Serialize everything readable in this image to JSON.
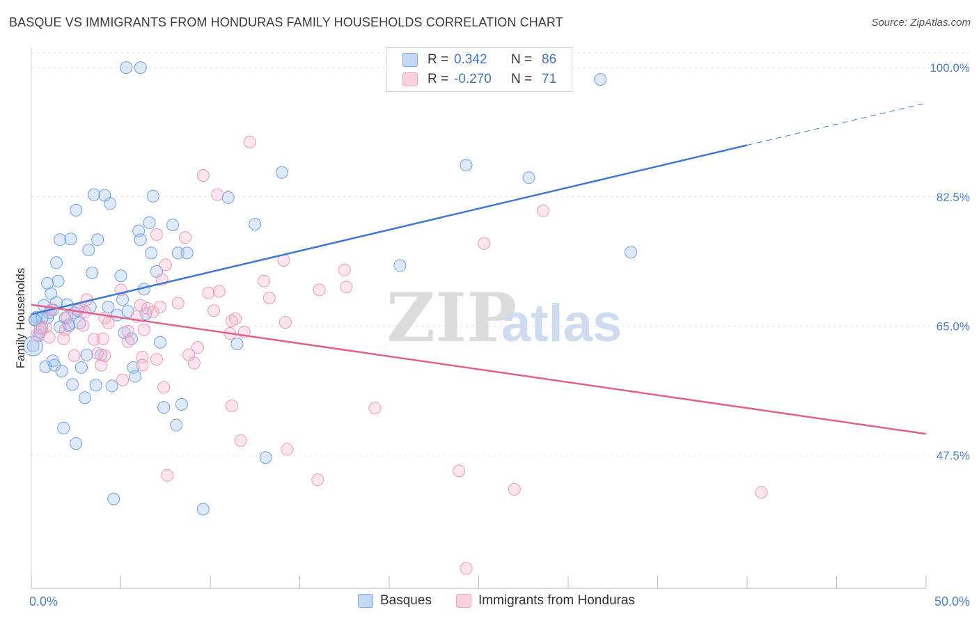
{
  "header": {
    "title": "BASQUE VS IMMIGRANTS FROM HONDURAS FAMILY HOUSEHOLDS CORRELATION CHART",
    "source": "Source: ZipAtlas.com"
  },
  "watermark": {
    "zip": "ZIP",
    "atlas": "atlas"
  },
  "legend": {
    "rows": [
      {
        "r_label": "R =",
        "r_value": "0.342",
        "n_label": "N =",
        "n_value": "86",
        "color": "#7aa8e8"
      },
      {
        "r_label": "R =",
        "r_value": "-0.270",
        "n_label": "N =",
        "n_value": "71",
        "color": "#f0a0bb"
      }
    ]
  },
  "chart_data": {
    "type": "scatter",
    "title": "BASQUE VS IMMIGRANTS FROM HONDURAS FAMILY HOUSEHOLDS CORRELATION CHART",
    "xlabel": "",
    "ylabel": "Family Households",
    "xlim": [
      0,
      50
    ],
    "ylim": [
      29.5,
      103.5
    ],
    "x_tick_labels": [
      "0.0%",
      "50.0%"
    ],
    "x_ticks": [
      0,
      5,
      10,
      15,
      20,
      25,
      30,
      35,
      40,
      45,
      50
    ],
    "y_ticks": [
      47.5,
      65.0,
      82.5,
      100.0
    ],
    "y_tick_labels": [
      "47.5%",
      "65.0%",
      "82.5%",
      "100.0%"
    ],
    "grid": true,
    "legend_position": "top-center",
    "series": [
      {
        "name": "Basques",
        "color": "#7aa8e8",
        "line_color": "#3d78d4",
        "trend": {
          "x0": 0,
          "y0": 66.6,
          "x1": 40,
          "y1": 89.5,
          "dash_to_x": 50,
          "dash_to_y": 95.2
        },
        "points": [
          [
            5.3,
            100.0
          ],
          [
            6.1,
            100.0
          ],
          [
            31.8,
            98.4
          ],
          [
            0.1,
            62.3
          ],
          [
            0.2,
            65.8
          ],
          [
            0.3,
            66.2
          ],
          [
            0.4,
            63.7
          ],
          [
            0.5,
            64.2
          ],
          [
            0.6,
            64.8
          ],
          [
            0.7,
            67.8
          ],
          [
            0.8,
            59.5
          ],
          [
            0.9,
            66.1
          ],
          [
            0.9,
            70.8
          ],
          [
            1.0,
            66.8
          ],
          [
            1.1,
            69.4
          ],
          [
            1.2,
            60.3
          ],
          [
            1.3,
            59.7
          ],
          [
            1.4,
            73.6
          ],
          [
            1.5,
            71.1
          ],
          [
            1.6,
            76.7
          ],
          [
            1.7,
            58.9
          ],
          [
            1.8,
            51.2
          ],
          [
            1.9,
            66.1
          ],
          [
            2.0,
            67.9
          ],
          [
            2.1,
            65.0
          ],
          [
            2.2,
            76.8
          ],
          [
            2.3,
            57.1
          ],
          [
            2.4,
            66.8
          ],
          [
            2.5,
            49.1
          ],
          [
            2.5,
            80.7
          ],
          [
            2.7,
            65.4
          ],
          [
            2.8,
            59.4
          ],
          [
            3.0,
            55.3
          ],
          [
            3.1,
            61.1
          ],
          [
            3.2,
            75.3
          ],
          [
            3.4,
            72.2
          ],
          [
            3.5,
            82.8
          ],
          [
            3.6,
            57.0
          ],
          [
            3.7,
            76.7
          ],
          [
            3.9,
            61.1
          ],
          [
            4.1,
            82.7
          ],
          [
            4.4,
            81.6
          ],
          [
            4.5,
            56.9
          ],
          [
            4.6,
            41.6
          ],
          [
            5.0,
            71.8
          ],
          [
            5.1,
            68.6
          ],
          [
            5.2,
            64.1
          ],
          [
            5.4,
            67.0
          ],
          [
            5.6,
            63.3
          ],
          [
            5.7,
            59.4
          ],
          [
            5.8,
            58.2
          ],
          [
            6.0,
            77.9
          ],
          [
            6.1,
            76.7
          ],
          [
            6.3,
            70.0
          ],
          [
            6.4,
            66.7
          ],
          [
            6.6,
            79.0
          ],
          [
            6.7,
            74.9
          ],
          [
            6.8,
            82.6
          ],
          [
            7.0,
            72.4
          ],
          [
            7.2,
            62.8
          ],
          [
            7.4,
            54.0
          ],
          [
            7.9,
            78.7
          ],
          [
            8.1,
            51.6
          ],
          [
            8.2,
            74.9
          ],
          [
            8.4,
            54.4
          ],
          [
            8.7,
            74.9
          ],
          [
            9.6,
            40.2
          ],
          [
            11.0,
            82.4
          ],
          [
            11.5,
            62.6
          ],
          [
            12.5,
            78.8
          ],
          [
            13.1,
            47.2
          ],
          [
            14.0,
            85.8
          ],
          [
            20.6,
            73.2
          ],
          [
            24.3,
            86.8
          ],
          [
            27.8,
            85.1
          ],
          [
            33.5,
            75.0
          ],
          [
            4.3,
            67.6
          ],
          [
            1.6,
            64.9
          ],
          [
            2.6,
            67.1
          ],
          [
            0.2,
            65.9
          ],
          [
            3.3,
            67.6
          ],
          [
            1.4,
            68.2
          ],
          [
            0.6,
            66.1
          ],
          [
            2.1,
            65.2
          ],
          [
            4.8,
            66.5
          ],
          [
            1.2,
            67.2
          ]
        ]
      },
      {
        "name": "Immigrants from Honduras",
        "color": "#f0a0bb",
        "line_color": "#e0608e",
        "trend": {
          "x0": 0,
          "y0": 67.9,
          "x1": 50,
          "y1": 50.4
        },
        "points": [
          [
            12.2,
            89.9
          ],
          [
            9.6,
            85.4
          ],
          [
            10.4,
            82.8
          ],
          [
            28.6,
            80.6
          ],
          [
            7.0,
            77.4
          ],
          [
            8.6,
            77.0
          ],
          [
            25.3,
            76.2
          ],
          [
            7.5,
            73.3
          ],
          [
            14.1,
            73.9
          ],
          [
            17.5,
            72.6
          ],
          [
            7.3,
            71.3
          ],
          [
            13.0,
            71.1
          ],
          [
            17.6,
            70.3
          ],
          [
            5.0,
            69.9
          ],
          [
            16.1,
            69.9
          ],
          [
            9.9,
            69.5
          ],
          [
            10.5,
            69.7
          ],
          [
            13.3,
            68.8
          ],
          [
            3.1,
            68.6
          ],
          [
            8.2,
            68.1
          ],
          [
            6.1,
            67.8
          ],
          [
            6.5,
            67.4
          ],
          [
            2.6,
            67.3
          ],
          [
            1.1,
            67.2
          ],
          [
            10.2,
            67.1
          ],
          [
            6.8,
            66.9
          ],
          [
            3.0,
            66.9
          ],
          [
            2.0,
            66.2
          ],
          [
            4.1,
            66.1
          ],
          [
            5.9,
            66.3
          ],
          [
            11.4,
            66.0
          ],
          [
            11.2,
            65.7
          ],
          [
            14.2,
            65.5
          ],
          [
            4.3,
            65.4
          ],
          [
            0.8,
            64.9
          ],
          [
            1.9,
            64.5
          ],
          [
            0.5,
            64.7
          ],
          [
            5.4,
            64.3
          ],
          [
            6.3,
            64.5
          ],
          [
            11.1,
            64.0
          ],
          [
            11.9,
            64.2
          ],
          [
            0.3,
            63.8
          ],
          [
            1.0,
            63.5
          ],
          [
            1.8,
            63.3
          ],
          [
            3.5,
            63.2
          ],
          [
            4.0,
            63.3
          ],
          [
            5.4,
            62.9
          ],
          [
            9.3,
            62.1
          ],
          [
            8.8,
            61.1
          ],
          [
            3.7,
            61.3
          ],
          [
            2.4,
            61.0
          ],
          [
            6.2,
            60.8
          ],
          [
            7.0,
            60.5
          ],
          [
            3.9,
            59.7
          ],
          [
            6.2,
            59.7
          ],
          [
            5.1,
            57.7
          ],
          [
            7.4,
            56.7
          ],
          [
            9.1,
            60.0
          ],
          [
            11.2,
            54.2
          ],
          [
            19.2,
            53.9
          ],
          [
            11.7,
            49.5
          ],
          [
            14.3,
            48.3
          ],
          [
            7.6,
            44.8
          ],
          [
            16.0,
            44.2
          ],
          [
            23.9,
            45.4
          ],
          [
            27.0,
            42.9
          ],
          [
            40.8,
            42.5
          ],
          [
            24.3,
            32.2
          ],
          [
            4.1,
            61.0
          ],
          [
            7.2,
            67.6
          ],
          [
            2.9,
            65.1
          ]
        ]
      }
    ]
  }
}
